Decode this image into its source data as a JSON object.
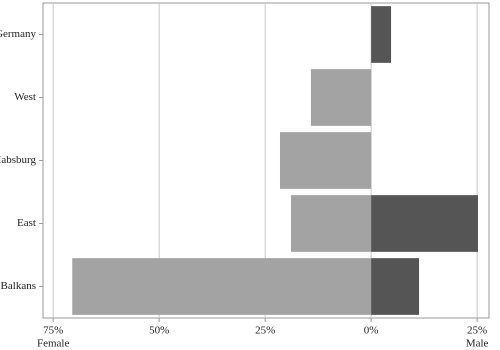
{
  "chart_data": {
    "type": "bar",
    "orientation": "horizontal",
    "stacked": false,
    "categories": [
      "Germany",
      "West",
      "Habsburg",
      "East",
      "Balkans"
    ],
    "series": [
      {
        "name": "Female",
        "color": "#a3a3a3",
        "values": [
          null,
          -14.2,
          -21.5,
          -18.9,
          -70.5
        ]
      },
      {
        "name": "Male",
        "color": "#555555",
        "values": [
          4.7,
          null,
          null,
          25.2,
          11.3
        ]
      }
    ],
    "xlim": [
      -77.4,
      27.8
    ],
    "xticks": [
      {
        "value": -75,
        "label": "75%"
      },
      {
        "value": -50,
        "label": "50%"
      },
      {
        "value": -25,
        "label": "25%"
      },
      {
        "value": 0,
        "label": "0%"
      },
      {
        "value": 25,
        "label": "25%"
      }
    ],
    "grid": true
  }
}
